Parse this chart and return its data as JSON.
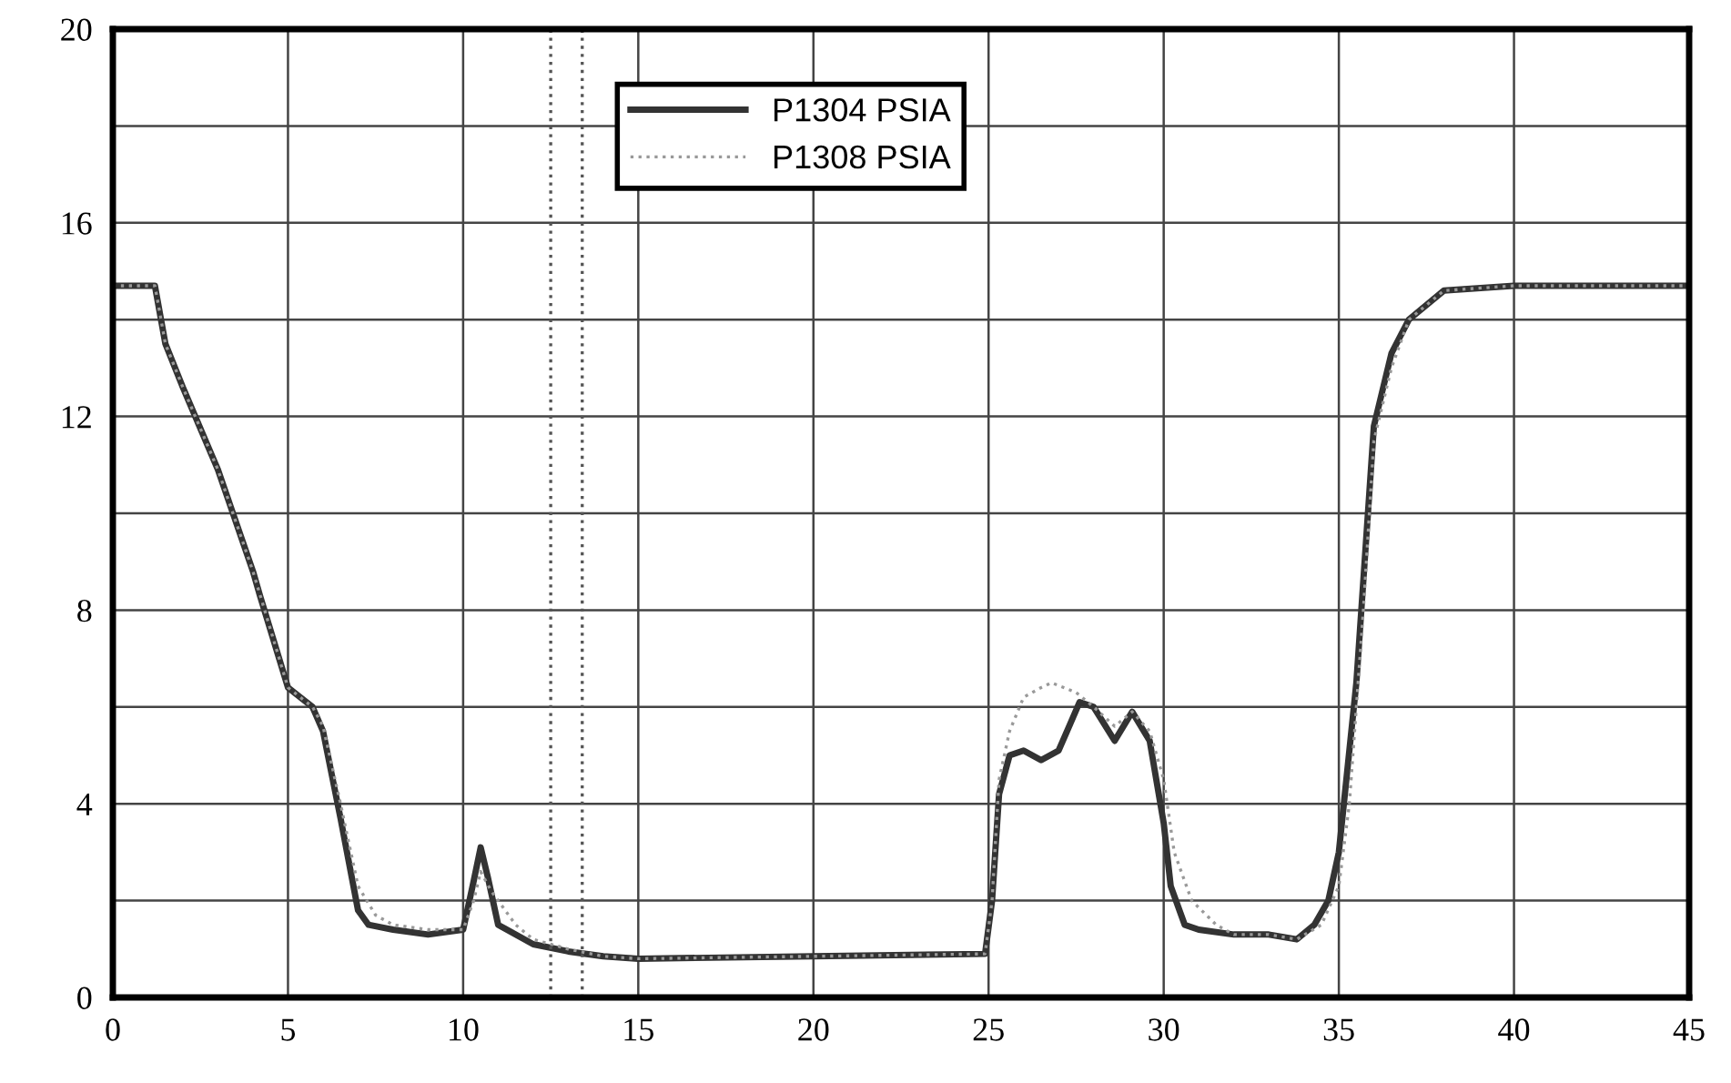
{
  "chart_data": {
    "type": "line",
    "xlim": [
      0,
      45
    ],
    "ylim": [
      0,
      20
    ],
    "xticks": [
      0,
      5,
      10,
      15,
      20,
      25,
      30,
      35,
      40,
      45
    ],
    "yticks": [
      0,
      {
        "value": 2,
        "label": null
      },
      4,
      {
        "value": 6,
        "label": null
      },
      8,
      {
        "value": 10,
        "label": null
      },
      12,
      {
        "value": 14,
        "label": null
      },
      16,
      {
        "value": 18,
        "label": null
      },
      20
    ],
    "grid": true,
    "legend": "top",
    "marker": "none",
    "ref_lines": [
      {
        "axis": "x",
        "value": 12.5,
        "color": "#555555",
        "line_style": "dotted"
      },
      {
        "axis": "x",
        "value": 13.4,
        "color": "#555555",
        "line_style": "dotted"
      }
    ],
    "series": [
      {
        "name": "P1304 PSIA",
        "color": "#333333",
        "line_style": "solid",
        "x": [
          0,
          1.2,
          1.5,
          2,
          3,
          4,
          4.2,
          5,
          5.7,
          6,
          6.5,
          7,
          7.3,
          8,
          9,
          10,
          10.3,
          10.5,
          10.7,
          11,
          12,
          13,
          14,
          15,
          20,
          24.9,
          25.1,
          25.3,
          25.6,
          26,
          26.5,
          27,
          27.3,
          27.6,
          28,
          28.6,
          29.1,
          29.6,
          30,
          30.2,
          30.6,
          31,
          32,
          33,
          33.8,
          34.3,
          34.7,
          35,
          35.5,
          36,
          36.5,
          37,
          38,
          40,
          45
        ],
        "values": [
          14.7,
          14.7,
          13.5,
          12.6,
          10.9,
          8.8,
          8.3,
          6.4,
          6.0,
          5.5,
          3.7,
          1.8,
          1.5,
          1.4,
          1.3,
          1.4,
          2.4,
          3.1,
          2.5,
          1.5,
          1.1,
          0.95,
          0.85,
          0.8,
          0.85,
          0.9,
          2.0,
          4.2,
          5.0,
          5.1,
          4.9,
          5.1,
          5.6,
          6.1,
          6.0,
          5.3,
          5.9,
          5.3,
          3.6,
          2.3,
          1.5,
          1.4,
          1.3,
          1.3,
          1.2,
          1.5,
          2.0,
          3.0,
          6.5,
          11.8,
          13.3,
          14.0,
          14.6,
          14.7,
          14.7
        ]
      },
      {
        "name": "P1308 PSIA",
        "color": "#999999",
        "line_style": "dotted",
        "x": [
          0,
          1.2,
          1.5,
          2,
          3,
          4,
          5,
          5.7,
          6,
          6.5,
          7,
          7.5,
          8,
          9,
          10,
          10.3,
          10.5,
          10.8,
          11.5,
          12,
          13,
          14,
          15,
          20,
          24.9,
          25.1,
          25.3,
          25.6,
          26,
          26.5,
          26.8,
          27.5,
          28,
          28.6,
          29.1,
          29.6,
          30,
          30.3,
          30.8,
          31.5,
          32,
          33,
          33.8,
          34.5,
          35,
          35.3,
          35.7,
          36,
          36.5,
          37,
          38,
          40,
          45
        ],
        "values": [
          14.7,
          14.7,
          13.5,
          12.6,
          10.9,
          8.8,
          6.4,
          6.0,
          5.6,
          4.0,
          2.3,
          1.7,
          1.5,
          1.4,
          1.4,
          2.0,
          2.6,
          2.2,
          1.5,
          1.2,
          1.0,
          0.85,
          0.8,
          0.85,
          0.9,
          2.0,
          4.5,
          5.5,
          6.2,
          6.4,
          6.5,
          6.3,
          6.0,
          5.6,
          5.9,
          5.5,
          4.5,
          3.0,
          2.0,
          1.5,
          1.3,
          1.3,
          1.2,
          1.5,
          2.3,
          4.0,
          8.0,
          11.5,
          13.0,
          14.0,
          14.6,
          14.7,
          14.7
        ]
      }
    ]
  }
}
